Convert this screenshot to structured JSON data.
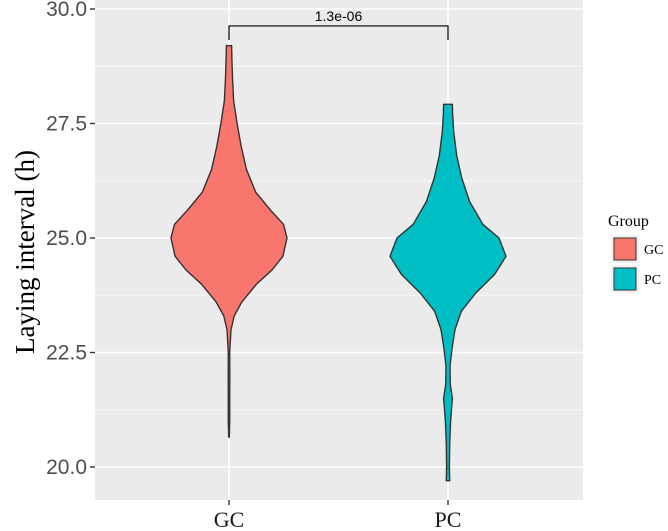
{
  "chart_data": {
    "type": "violin",
    "title": "",
    "xlabel": "",
    "ylabel": "Laying interval (h)",
    "ylim": [
      19.75,
      30.05
    ],
    "yticks": [
      20.0,
      22.5,
      25.0,
      27.5,
      30.0
    ],
    "ytick_labels": [
      "20.0",
      "22.5",
      "25.0",
      "27.5",
      "30.0"
    ],
    "categories": [
      "GC",
      "PC"
    ],
    "grid": true,
    "legend": {
      "title": "Group",
      "position": "right",
      "entries": [
        "GC",
        "PC"
      ]
    },
    "series": [
      {
        "name": "GC",
        "color": "#F8766D",
        "min": 20.65,
        "max": 29.2,
        "density": [
          [
            20.65,
            0.006
          ],
          [
            21.0,
            0.012
          ],
          [
            21.5,
            0.012
          ],
          [
            22.0,
            0.014
          ],
          [
            22.5,
            0.012
          ],
          [
            23.0,
            0.035
          ],
          [
            23.3,
            0.09
          ],
          [
            23.6,
            0.22
          ],
          [
            24.0,
            0.48
          ],
          [
            24.3,
            0.74
          ],
          [
            24.6,
            0.93
          ],
          [
            25.0,
            1.0
          ],
          [
            25.3,
            0.94
          ],
          [
            25.6,
            0.72
          ],
          [
            26.0,
            0.46
          ],
          [
            26.5,
            0.3
          ],
          [
            27.0,
            0.21
          ],
          [
            27.5,
            0.14
          ],
          [
            28.0,
            0.08
          ],
          [
            28.5,
            0.06
          ],
          [
            28.9,
            0.05
          ],
          [
            29.2,
            0.045
          ]
        ]
      },
      {
        "name": "PC",
        "color": "#00BFC4",
        "min": 19.7,
        "max": 27.92,
        "density": [
          [
            19.7,
            0.03
          ],
          [
            20.0,
            0.025
          ],
          [
            20.5,
            0.03
          ],
          [
            21.0,
            0.045
          ],
          [
            21.5,
            0.075
          ],
          [
            21.8,
            0.04
          ],
          [
            22.2,
            0.035
          ],
          [
            22.6,
            0.07
          ],
          [
            23.0,
            0.12
          ],
          [
            23.4,
            0.23
          ],
          [
            23.8,
            0.48
          ],
          [
            24.2,
            0.8
          ],
          [
            24.6,
            1.0
          ],
          [
            25.0,
            0.88
          ],
          [
            25.3,
            0.6
          ],
          [
            25.8,
            0.37
          ],
          [
            26.3,
            0.24
          ],
          [
            26.8,
            0.15
          ],
          [
            27.3,
            0.1
          ],
          [
            27.7,
            0.08
          ],
          [
            27.92,
            0.075
          ]
        ]
      }
    ],
    "annotations": [
      {
        "type": "bracket",
        "from": "GC",
        "to": "PC",
        "y": 29.63,
        "text": "1.3e-06"
      }
    ]
  }
}
